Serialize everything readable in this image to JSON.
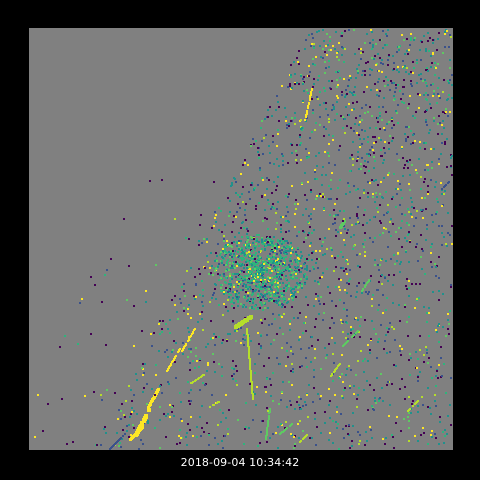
{
  "image": {
    "timestamp": "2018-09-04 10:34:42",
    "colors": {
      "border": "#000000",
      "background": "#808080",
      "timestamp_text": "#ffffff"
    },
    "palette": [
      "#440154",
      "#3b528b",
      "#21918c",
      "#2fb47c",
      "#5ec962",
      "#b5de2b",
      "#fde725"
    ],
    "icon_names": []
  }
}
